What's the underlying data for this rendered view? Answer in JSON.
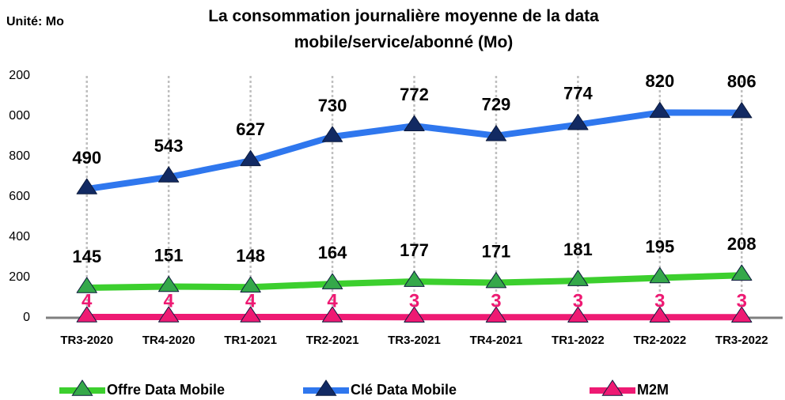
{
  "chart_data": {
    "type": "line",
    "stacked": true,
    "title": "La consommation journalière moyenne de la data mobile/service/abonné (Mo)",
    "unit_label": "Unité: Mo",
    "categories": [
      "TR3-2020",
      "TR4-2020",
      "TR1-2021",
      "TR2-2021",
      "TR3-2021",
      "TR4-2021",
      "TR1-2022",
      "TR2-2022",
      "TR3-2022"
    ],
    "series": [
      {
        "name": "Offre Data Mobile",
        "color": "#3ccf2e",
        "marker_color": "#35a84a",
        "values": [
          145,
          151,
          148,
          164,
          177,
          171,
          181,
          195,
          208
        ]
      },
      {
        "name": "Clé Data Mobile",
        "color": "#2f77ee",
        "marker_color": "#122a63",
        "values": [
          490,
          543,
          627,
          730,
          772,
          729,
          774,
          820,
          806
        ]
      },
      {
        "name": "M2M",
        "color": "#ee1a73",
        "marker_color": "#ee1a73",
        "values": [
          4,
          4,
          4,
          4,
          3,
          3,
          3,
          3,
          3
        ]
      }
    ],
    "ylim": [
      0,
      1200
    ],
    "yticks": [
      0,
      200,
      400,
      600,
      800,
      {
        "value": 1000,
        "label": "000"
      },
      {
        "value": 1200,
        "label": "200"
      }
    ],
    "grid": "vertical"
  }
}
